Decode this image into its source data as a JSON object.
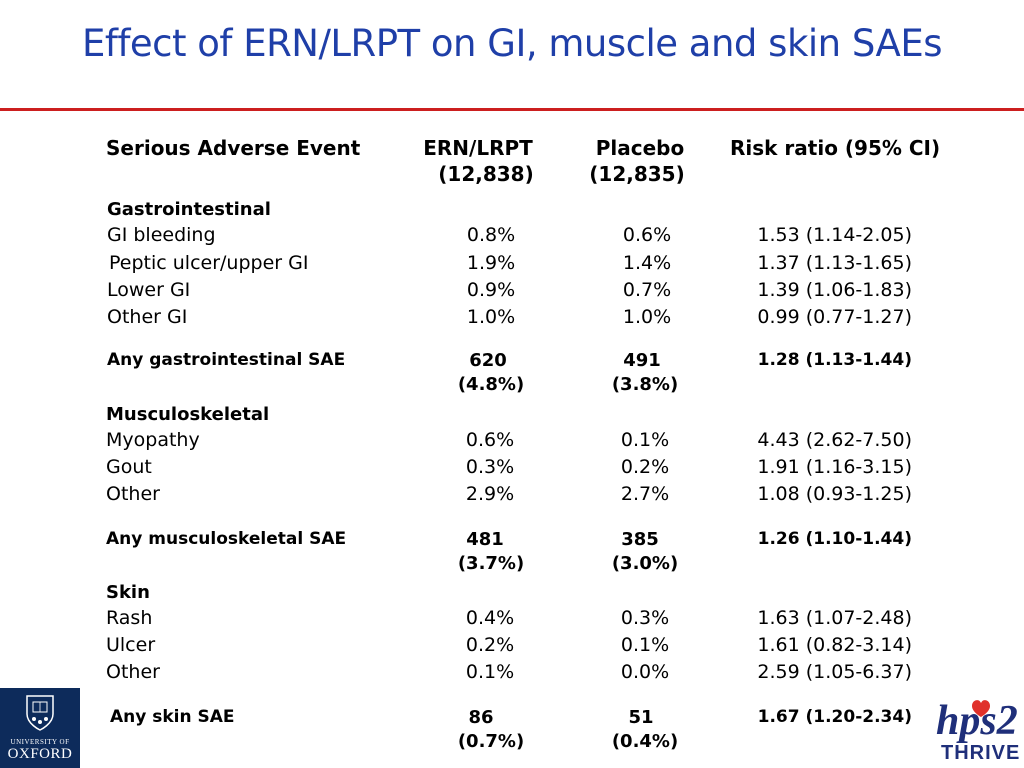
{
  "title": "Effect of ERN/LRPT on GI, muscle and skin SAEs",
  "colors": {
    "title": "#1f3fa8",
    "rule": "#cc1f1f",
    "oxford_bg": "#0d2b5b",
    "thrive_blue": "#1f2f7a",
    "thrive_red": "#e0302a"
  },
  "header": {
    "event": "Serious Adverse Event",
    "ern": "ERN/LRPT",
    "ern_n": "(12,838)",
    "placebo": "Placebo",
    "placebo_n": "(12,835)",
    "rr": "Risk ratio (95% CI)"
  },
  "gi": {
    "heading": "Gastrointestinal",
    "rows": [
      {
        "event": "GI bleeding",
        "ern": "0.8%",
        "placebo": "0.6%",
        "rr": "1.53 (1.14-2.05)"
      },
      {
        "event": "Peptic ulcer/upper GI",
        "ern": "1.9%",
        "placebo": "1.4%",
        "rr": "1.37 (1.13-1.65)"
      },
      {
        "event": "Lower GI",
        "ern": "0.9%",
        "placebo": "0.7%",
        "rr": "1.39 (1.06-1.83)"
      },
      {
        "event": "Other GI",
        "ern": "1.0%",
        "placebo": "1.0%",
        "rr": "0.99 (0.77-1.27)"
      }
    ],
    "any": {
      "event": "Any gastrointestinal SAE",
      "ern": "620",
      "ern_pct": "(4.8%)",
      "placebo": "491",
      "placebo_pct": "(3.8%)",
      "rr": "1.28 (1.13-1.44)"
    }
  },
  "musc": {
    "heading": "Musculoskeletal",
    "rows": [
      {
        "event": "Myopathy",
        "ern": "0.6%",
        "placebo": "0.1%",
        "rr": "4.43 (2.62-7.50)"
      },
      {
        "event": "Gout",
        "ern": "0.3%",
        "placebo": "0.2%",
        "rr": "1.91 (1.16-3.15)"
      },
      {
        "event": "Other",
        "ern": "2.9%",
        "placebo": "2.7%",
        "rr": "1.08 (0.93-1.25)"
      }
    ],
    "any": {
      "event": "Any musculoskeletal SAE",
      "ern": "481",
      "ern_pct": "(3.7%)",
      "placebo": "385",
      "placebo_pct": "(3.0%)",
      "rr": "1.26 (1.10-1.44)"
    }
  },
  "skin": {
    "heading": "Skin",
    "rows": [
      {
        "event": "Rash",
        "ern": "0.4%",
        "placebo": "0.3%",
        "rr": "1.63 (1.07-2.48)"
      },
      {
        "event": "Ulcer",
        "ern": "0.2%",
        "placebo": "0.1%",
        "rr": "1.61 (0.82-3.14)"
      },
      {
        "event": "Other",
        "ern": "0.1%",
        "placebo": "0.0%",
        "rr": "2.59 (1.05-6.37)"
      }
    ],
    "any": {
      "event": "Any skin SAE",
      "ern": "86",
      "ern_pct": "(0.7%)",
      "placebo": "51",
      "placebo_pct": "(0.4%)",
      "rr": "1.67 (1.20-2.34)"
    }
  },
  "logos": {
    "oxford_line1": "UNIVERSITY OF",
    "oxford_line2": "OXFORD",
    "thrive_mark": "hps2",
    "thrive_word": "THRIVE"
  }
}
